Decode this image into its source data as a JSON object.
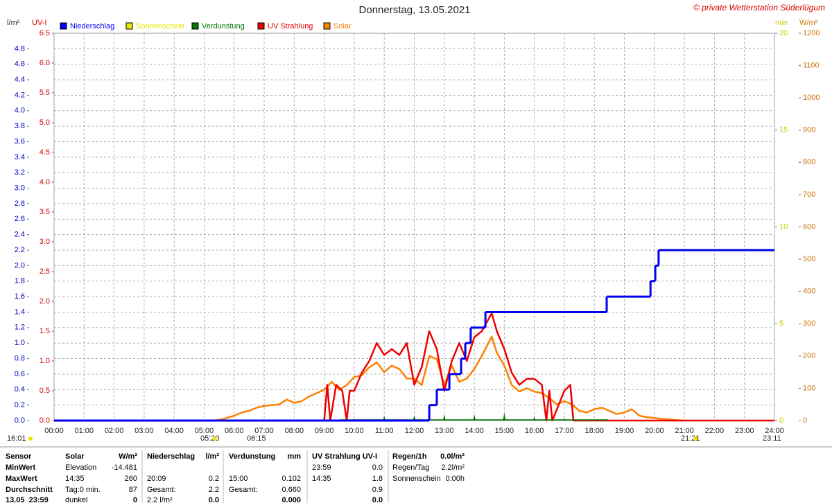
{
  "chart_data": {
    "type": "line",
    "title": "Donnerstag, 13.05.2021",
    "subtitle": "© private Wetterstation Süderlügum",
    "ylabel": "l/m²",
    "y2label": "UV-I",
    "y3label": "min",
    "y4label": "W/m²",
    "xlim": [
      0,
      24
    ],
    "xticks": [
      {
        "value": 0,
        "label": "00:00"
      },
      {
        "value": 1,
        "label": "01:00"
      },
      {
        "value": 2,
        "label": "02:00"
      },
      {
        "value": 3,
        "label": "03:00"
      },
      {
        "value": 4,
        "label": "04:00"
      },
      {
        "value": 5,
        "label": "05:00"
      },
      {
        "value": 6,
        "label": "06:00"
      },
      {
        "value": 7,
        "label": "07:00"
      },
      {
        "value": 8,
        "label": "08:00"
      },
      {
        "value": 9,
        "label": "09:00"
      },
      {
        "value": 10,
        "label": "10:00"
      },
      {
        "value": 11,
        "label": "11:00"
      },
      {
        "value": 12,
        "label": "12:00"
      },
      {
        "value": 13,
        "label": "13:00"
      },
      {
        "value": 14,
        "label": "14:00"
      },
      {
        "value": 15,
        "label": "15:00"
      },
      {
        "value": 16,
        "label": "16:00"
      },
      {
        "value": 17,
        "label": "17:00"
      },
      {
        "value": 18,
        "label": "18:00"
      },
      {
        "value": 19,
        "label": "19:00"
      },
      {
        "value": 20,
        "label": "20:00"
      },
      {
        "value": 21,
        "label": "21:00"
      },
      {
        "value": 22,
        "label": "22:00"
      },
      {
        "value": 23,
        "label": "23:00"
      },
      {
        "value": 24,
        "label": "24:00"
      }
    ],
    "ylim": [
      0,
      5
    ],
    "yticks": [
      {
        "value": 0,
        "label": "0.0"
      },
      0.2,
      0.4,
      0.6,
      0.8,
      {
        "value": 1,
        "label": "1.0"
      },
      1.2,
      1.4,
      1.6,
      1.8,
      {
        "value": 2,
        "label": "2.0"
      },
      2.2,
      2.4,
      2.6,
      2.8,
      {
        "value": 3,
        "label": "3.0"
      },
      3.2,
      3.4,
      3.6,
      3.8,
      {
        "value": 4,
        "label": "4.0"
      },
      4.2,
      4.4,
      4.6,
      4.8
    ],
    "y2lim": [
      0,
      6.5
    ],
    "y2ticks": [
      {
        "value": 0,
        "label": "0.0"
      },
      0.5,
      {
        "value": 1,
        "label": "1.0"
      },
      1.5,
      {
        "value": 2,
        "label": "2.0"
      },
      2.5,
      {
        "value": 3,
        "label": "3.0"
      },
      3.5,
      {
        "value": 4,
        "label": "4.0"
      },
      4.5,
      {
        "value": 5,
        "label": "5.0"
      },
      5.5,
      {
        "value": 6,
        "label": "6.0"
      },
      6.5
    ],
    "y3lim": [
      0,
      20
    ],
    "y3ticks": [
      0,
      5,
      10,
      15,
      20
    ],
    "y4lim": [
      0,
      1200
    ],
    "y4ticks": [
      0,
      100,
      200,
      300,
      400,
      500,
      600,
      700,
      800,
      900,
      1000,
      1100,
      1200
    ],
    "grid": true,
    "series": [
      {
        "name": "Niederschlag",
        "color": "#0000ee",
        "axis": "y",
        "style": "step",
        "x": [
          0,
          12.5,
          12.75,
          13.17,
          13.56,
          13.7,
          13.88,
          14.37,
          18.41,
          19.87,
          20.03,
          20.14,
          24
        ],
        "values": [
          0,
          0.2,
          0.4,
          0.6,
          0.8,
          1.0,
          1.2,
          1.4,
          1.6,
          1.8,
          2.0,
          2.2,
          2.2
        ]
      },
      {
        "name": "Sonnenschein",
        "color": "#e6e600",
        "axis": "y3"
      },
      {
        "name": "Verdunstung",
        "color": "#007700",
        "axis": "y",
        "style": "spike",
        "x": [
          10,
          11,
          12,
          13,
          14,
          15,
          16,
          17,
          18
        ],
        "values": [
          0.02,
          0.06,
          0.07,
          0.08,
          0.08,
          0.102,
          0.05,
          0.03,
          0.01
        ]
      },
      {
        "name": "UV Strahlung",
        "color": "#ee0000",
        "axis": "y2",
        "style": "line",
        "x": [
          0,
          9.0,
          9.1,
          9.2,
          9.4,
          9.6,
          9.75,
          9.85,
          10.0,
          10.25,
          10.5,
          10.75,
          11.0,
          11.25,
          11.5,
          11.75,
          12.0,
          12.25,
          12.5,
          12.75,
          13.0,
          13.25,
          13.5,
          13.75,
          14.0,
          14.25,
          14.58,
          14.75,
          15.0,
          15.25,
          15.5,
          15.75,
          16.0,
          16.25,
          16.4,
          16.5,
          16.6,
          17.0,
          17.2,
          17.3,
          24
        ],
        "values": [
          0,
          0,
          0.6,
          0,
          0.6,
          0.5,
          0,
          0.5,
          0.5,
          0.8,
          1.0,
          1.3,
          1.1,
          1.2,
          1.1,
          1.3,
          0.6,
          0.9,
          1.5,
          1.2,
          0.5,
          1.0,
          1.3,
          1.0,
          1.4,
          1.5,
          1.8,
          1.5,
          1.2,
          0.8,
          0.6,
          0.7,
          0.7,
          0.6,
          0,
          0.5,
          0,
          0.5,
          0.6,
          0,
          0
        ]
      },
      {
        "name": "Solar",
        "color": "#ff8000",
        "axis": "y4",
        "style": "line",
        "x": [
          5.25,
          5.5,
          5.75,
          6.0,
          6.25,
          6.5,
          6.75,
          7.0,
          7.25,
          7.5,
          7.75,
          8.0,
          8.25,
          8.5,
          8.75,
          9.0,
          9.25,
          9.5,
          9.75,
          10.0,
          10.25,
          10.5,
          10.75,
          11.0,
          11.25,
          11.5,
          11.75,
          12.0,
          12.25,
          12.5,
          12.75,
          13.0,
          13.25,
          13.5,
          13.75,
          14.0,
          14.25,
          14.58,
          14.75,
          15.0,
          15.25,
          15.5,
          15.75,
          16.0,
          16.25,
          16.5,
          16.75,
          17.0,
          17.25,
          17.5,
          17.75,
          18.0,
          18.25,
          18.5,
          18.75,
          19.0,
          19.25,
          19.5,
          19.75,
          20.0,
          20.25,
          20.5,
          20.75,
          21.0
        ],
        "values": [
          0,
          2,
          8,
          15,
          25,
          30,
          40,
          45,
          48,
          50,
          65,
          55,
          60,
          75,
          85,
          95,
          120,
          95,
          110,
          135,
          140,
          165,
          180,
          150,
          170,
          160,
          130,
          130,
          110,
          200,
          190,
          110,
          170,
          120,
          130,
          160,
          200,
          260,
          210,
          170,
          110,
          90,
          100,
          90,
          85,
          70,
          50,
          60,
          50,
          30,
          25,
          35,
          40,
          30,
          20,
          25,
          35,
          15,
          10,
          8,
          5,
          3,
          1,
          0
        ]
      }
    ],
    "annotations": [
      "16:01",
      "05:20",
      "06:15",
      "21:21",
      "23:11"
    ]
  },
  "table": {
    "rows": [
      [
        "Sensor",
        "Solar",
        "W/m²",
        "Niederschlag",
        "l/m²",
        "Verdunstung",
        "mm",
        "UV Strahlung UV-I",
        null,
        "Regen/1h",
        "0.0l/m²"
      ],
      [
        "MinWert",
        "Elevation",
        "-14.481",
        null,
        null,
        null,
        null,
        "23:59",
        "0.0",
        "Regen/Tag",
        "2.2l/m²"
      ],
      [
        "MaxWert",
        "14:35",
        "260",
        "20:09",
        "0.2",
        "15:00",
        "0.102",
        "14:35",
        "1.8",
        "Sonnenschein",
        "0:00h"
      ],
      [
        "Durchschnitt",
        "Tag:0 min.",
        "87",
        "Gesamt:",
        "2.2",
        "Gesamt:",
        "0.660",
        null,
        "0.9",
        null,
        null
      ],
      [
        "13.05  23:59",
        "dunkel",
        "0",
        "2.2 l/m²",
        "0.0",
        null,
        "0.000",
        null,
        "0.0",
        null,
        null
      ]
    ]
  }
}
